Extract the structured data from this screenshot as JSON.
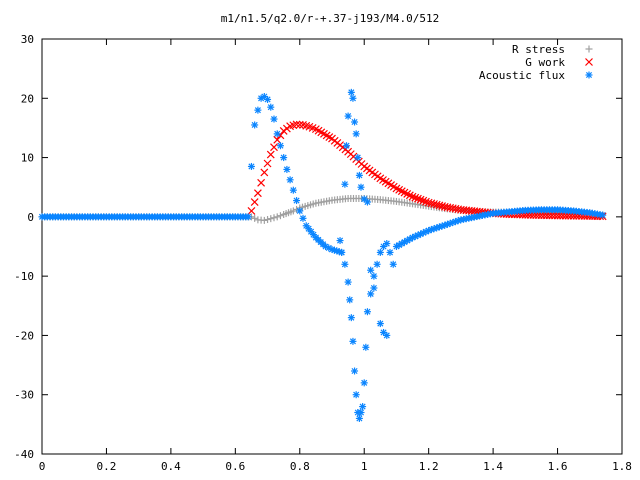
{
  "chart_data": {
    "type": "scatter",
    "title": "m1/n1.5/q2.0/r-+.37-j193/M4.0/512",
    "xlabel": "",
    "ylabel": "",
    "xlim": [
      0,
      1.8
    ],
    "ylim": [
      -40,
      30
    ],
    "xticks": [
      "0",
      "0.2",
      "0.4",
      "0.6",
      "0.8",
      "1",
      "1.2",
      "1.4",
      "1.6",
      "1.8"
    ],
    "yticks": [
      "30",
      "20",
      "10",
      "0",
      "-10",
      "-20",
      "-30",
      "-40"
    ],
    "grid": false,
    "legend_position": "top-right",
    "series": [
      {
        "name": "R stress",
        "marker": "plus",
        "color": "#a0a0a0",
        "x": [
          0.0,
          0.1,
          0.2,
          0.3,
          0.4,
          0.5,
          0.6,
          0.65,
          0.67,
          0.69,
          0.71,
          0.73,
          0.75,
          0.78,
          0.8,
          0.85,
          0.9,
          0.95,
          1.0,
          1.05,
          1.1,
          1.15,
          1.2,
          1.25,
          1.3,
          1.35,
          1.4,
          1.45,
          1.5,
          1.55,
          1.6,
          1.65,
          1.7,
          1.74
        ],
        "values": [
          0,
          0,
          0,
          0,
          0,
          0,
          0,
          0,
          -0.5,
          -0.6,
          -0.3,
          0,
          0.4,
          1.0,
          1.5,
          2.3,
          2.8,
          3.1,
          3.1,
          2.9,
          2.6,
          2.2,
          1.8,
          1.4,
          1.1,
          0.9,
          0.8,
          0.8,
          0.8,
          0.8,
          0.7,
          0.6,
          0.4,
          0.3
        ]
      },
      {
        "name": "G work",
        "marker": "cross",
        "color": "#ff0000",
        "x": [
          0.65,
          0.67,
          0.69,
          0.71,
          0.73,
          0.75,
          0.77,
          0.79,
          0.81,
          0.83,
          0.85,
          0.9,
          0.95,
          1.0,
          1.05,
          1.1,
          1.15,
          1.2,
          1.25,
          1.3,
          1.35,
          1.4,
          1.45,
          1.5,
          1.55,
          1.6,
          1.65,
          1.7,
          1.74
        ],
        "values": [
          1,
          4,
          7.5,
          10.5,
          13,
          14.5,
          15.3,
          15.6,
          15.5,
          15.2,
          14.8,
          13.2,
          11,
          8.5,
          6.5,
          4.8,
          3.4,
          2.4,
          1.7,
          1.2,
          0.9,
          0.6,
          0.45,
          0.35,
          0.28,
          0.22,
          0.18,
          0.15,
          0.1
        ]
      },
      {
        "name": "Acoustic flux",
        "marker": "star",
        "color": "#0a85ff",
        "x": [
          0.0,
          0.1,
          0.2,
          0.3,
          0.4,
          0.5,
          0.6,
          0.64,
          0.65,
          0.66,
          0.67,
          0.68,
          0.69,
          0.7,
          0.71,
          0.72,
          0.73,
          0.74,
          0.76,
          0.78,
          0.8,
          0.82,
          0.85,
          0.88,
          0.9,
          0.93,
          0.94,
          0.95,
          0.955,
          0.96,
          0.965,
          0.97,
          0.975,
          0.98,
          0.985,
          0.99,
          0.995,
          1.0,
          1.005,
          1.01,
          1.02,
          1.03,
          1.04,
          1.05,
          1.06,
          1.07,
          1.08,
          1.09,
          1.1,
          1.15,
          1.2,
          1.3,
          1.4,
          1.5,
          1.55,
          1.6,
          1.65,
          1.7,
          1.74
        ],
        "values": [
          0,
          0,
          0,
          0,
          0,
          0,
          0,
          0,
          8.5,
          15.5,
          18,
          20,
          20.3,
          19.8,
          18.5,
          16.5,
          14,
          12,
          8,
          4.5,
          1,
          -1.5,
          -3.5,
          -5,
          -5.5,
          -6,
          -8,
          -11,
          -14,
          -17,
          -21,
          -26,
          -30,
          -33,
          -34,
          -33,
          -32,
          -28,
          -22,
          -16,
          -13,
          -10,
          -8,
          -6,
          -5,
          -4.5,
          -6,
          -8,
          -5,
          -3.5,
          -2.3,
          -0.5,
          0.6,
          1.1,
          1.2,
          1.2,
          1.0,
          0.7,
          0.3
        ]
      }
    ],
    "scatter_extra": {
      "series": "Acoustic flux",
      "x": [
        0.925,
        0.93,
        0.94,
        0.945,
        0.95,
        0.96,
        0.965,
        0.97,
        0.975,
        0.98,
        0.985,
        0.99,
        1.0,
        1.01,
        1.02,
        1.03,
        1.05,
        1.06,
        1.07
      ],
      "values": [
        -4,
        -6,
        5.5,
        12,
        17,
        21,
        20,
        16,
        14,
        10,
        7,
        5,
        3,
        2.5,
        -9,
        -12,
        -18,
        -19.5,
        -20
      ]
    }
  }
}
